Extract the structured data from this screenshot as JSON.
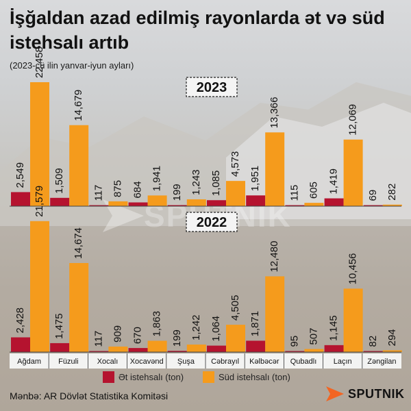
{
  "title": "İşğaldan azad edilmiş rayonlarda ət və süd istehsalı artıb",
  "subtitle": "(2023-cü ilin yanvar-iyun ayları)",
  "source": "Mənbə: AR Dövlət Statistika Komitəsi",
  "brand": "SPUTNIK",
  "watermark": "SPUTNIK",
  "colors": {
    "meat": "#b5132f",
    "milk": "#f59b1c"
  },
  "legend": {
    "meat": "Ət istehsalı (ton)",
    "milk": "Süd istehsalı (ton)"
  },
  "chart_data": {
    "type": "bar",
    "categories": [
      "Ağdam",
      "Füzuli",
      "Xocalı",
      "Xocavənd",
      "Şuşa",
      "Cəbrayıl",
      "Kəlbəcər",
      "Qubadlı",
      "Laçın",
      "Zəngilan"
    ],
    "panels": [
      {
        "year": "2023",
        "series": [
          {
            "name": "Ət istehsalı (ton)",
            "values": [
              2549,
              1509,
              117,
              684,
              199,
              1085,
              1951,
              115,
              1419,
              69
            ],
            "labels": [
              "2,549",
              "1,509",
              "117",
              "684",
              "199",
              "1,085",
              "1,951",
              "115",
              "1,419",
              "69"
            ]
          },
          {
            "name": "Süd istehsalı (ton)",
            "values": [
              22458,
              14679,
              875,
              1941,
              1243,
              4573,
              13366,
              605,
              12069,
              282
            ],
            "labels": [
              "22,458",
              "14,679",
              "875",
              "1,941",
              "1,243",
              "4,573",
              "13,366",
              "605",
              "12,069",
              "282"
            ]
          }
        ]
      },
      {
        "year": "2022",
        "series": [
          {
            "name": "Ət istehsalı (ton)",
            "values": [
              2428,
              1475,
              117,
              670,
              199,
              1064,
              1871,
              95,
              1145,
              82
            ],
            "labels": [
              "2,428",
              "1,475",
              "117",
              "670",
              "199",
              "1,064",
              "1,871",
              "95",
              "1,145",
              "82"
            ]
          },
          {
            "name": "Süd istehsalı (ton)",
            "values": [
              21579,
              14674,
              909,
              1863,
              1242,
              4505,
              12480,
              507,
              10456,
              294
            ],
            "labels": [
              "21,579",
              "14,674",
              "909",
              "1,863",
              "1,242",
              "4,505",
              "12,480",
              "507",
              "10,456",
              "294"
            ]
          }
        ]
      }
    ],
    "ylim": [
      0,
      22458
    ]
  }
}
